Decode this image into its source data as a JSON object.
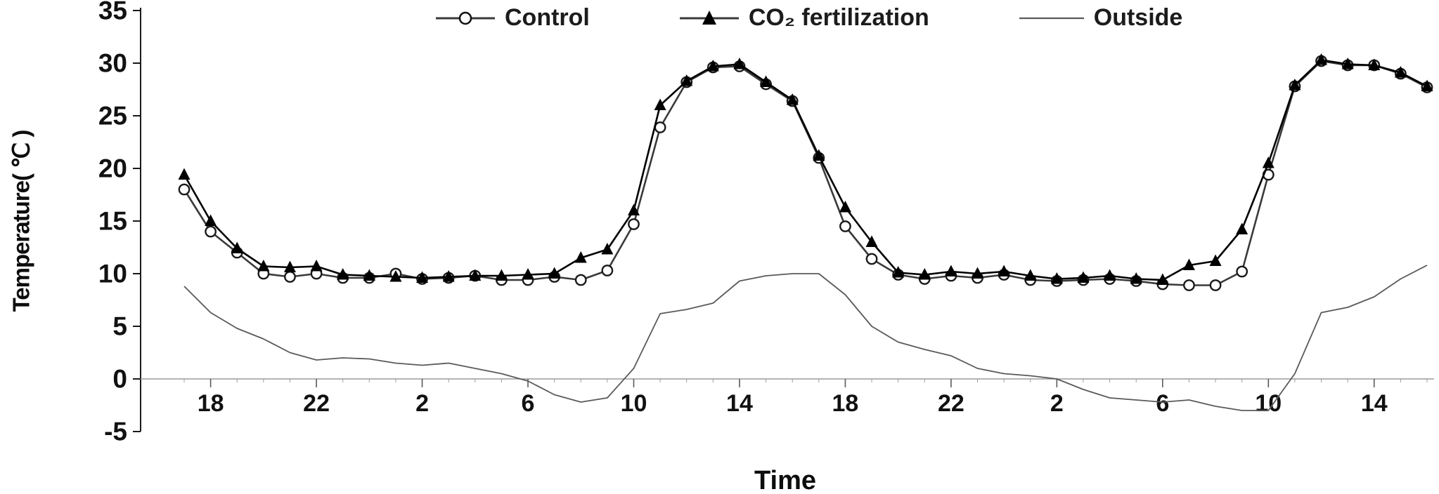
{
  "chart_data": {
    "type": "line",
    "title": "",
    "xlabel": "Time",
    "ylabel": "Temperature( ℃ )",
    "ylim": [
      -5,
      35
    ],
    "y_ticks": [
      35,
      30,
      25,
      20,
      15,
      10,
      5,
      0,
      -5
    ],
    "x_tick_labels": [
      "18",
      "22",
      "2",
      "6",
      "10",
      "14",
      "18",
      "22",
      "2",
      "6",
      "10",
      "14"
    ],
    "x_tick_indices": [
      1,
      5,
      9,
      13,
      17,
      21,
      25,
      29,
      33,
      37,
      41,
      45
    ],
    "grid": false,
    "legend_position": "top-center",
    "series": [
      {
        "id": "control",
        "name": "Control",
        "marker": "open-circle",
        "color": "#3a3a3a",
        "values": [
          18.0,
          14.0,
          12.0,
          10.0,
          9.7,
          10.0,
          9.6,
          9.6,
          10.0,
          9.5,
          9.6,
          9.8,
          9.4,
          9.4,
          9.7,
          9.4,
          10.3,
          14.7,
          23.9,
          28.2,
          29.6,
          29.7,
          28.0,
          26.4,
          21.0,
          14.5,
          11.4,
          9.9,
          9.5,
          9.8,
          9.6,
          9.9,
          9.4,
          9.3,
          9.4,
          9.5,
          9.3,
          9.0,
          8.9,
          8.9,
          10.2,
          19.4,
          27.8,
          30.2,
          29.8,
          29.8,
          29.0,
          27.7
        ]
      },
      {
        "id": "co2-fertilization",
        "name": "CO₂ fertilization",
        "marker": "filled-triangle",
        "color": "#000000",
        "values": [
          19.4,
          15.0,
          12.4,
          10.7,
          10.6,
          10.7,
          9.9,
          9.8,
          9.7,
          9.6,
          9.7,
          9.8,
          9.8,
          9.9,
          10.0,
          11.5,
          12.3,
          16.0,
          26.0,
          28.3,
          29.7,
          29.9,
          28.2,
          26.5,
          21.2,
          16.3,
          13.0,
          10.1,
          9.9,
          10.2,
          10.0,
          10.2,
          9.8,
          9.5,
          9.6,
          9.8,
          9.5,
          9.4,
          10.8,
          11.2,
          14.2,
          20.5,
          27.9,
          30.3,
          29.9,
          29.8,
          29.1,
          27.8
        ]
      },
      {
        "id": "outside",
        "name": "Outside",
        "marker": "none",
        "color": "#5a5a5a",
        "values": [
          8.8,
          6.3,
          4.8,
          3.8,
          2.5,
          1.8,
          2.0,
          1.9,
          1.5,
          1.3,
          1.5,
          1.0,
          0.5,
          -0.2,
          -1.5,
          -2.2,
          -1.8,
          1.0,
          6.2,
          6.6,
          7.2,
          9.3,
          9.8,
          10.0,
          10.0,
          8.0,
          5.0,
          3.5,
          2.8,
          2.2,
          1.0,
          0.5,
          0.3,
          0.0,
          -1.0,
          -1.8,
          -2.0,
          -2.2,
          -2.0,
          -2.6,
          -3.0,
          -3.0,
          0.5,
          6.3,
          6.8,
          7.8,
          9.5,
          10.8
        ]
      }
    ]
  }
}
